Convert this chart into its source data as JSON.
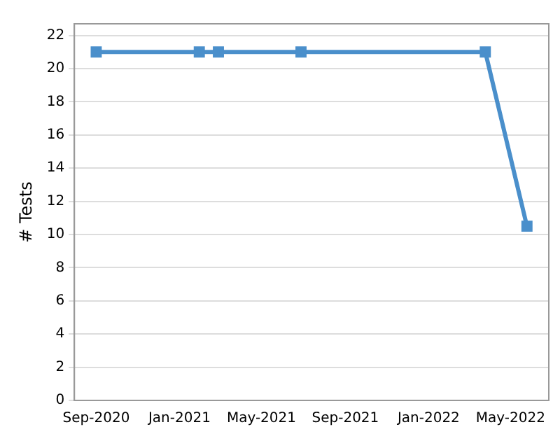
{
  "chart_data": {
    "type": "line",
    "ylabel": "# Tests",
    "x": [
      "2020-09-01",
      "2021-01-30",
      "2021-02-27",
      "2021-06-28",
      "2022-03-25",
      "2022-05-25"
    ],
    "series": [
      {
        "color": "#4a8fcb",
        "values": [
          21,
          21,
          21,
          21,
          21,
          10.5
        ]
      }
    ],
    "xlim": [
      "2020-07-31",
      "2022-06-26"
    ],
    "xticks": [
      {
        "value": "2020-09-01",
        "label": "Sep-2020"
      },
      {
        "value": "2021-01-01",
        "label": "Jan-2021"
      },
      {
        "value": "2021-05-01",
        "label": "May-2021"
      },
      {
        "value": "2021-09-01",
        "label": "Sep-2021"
      },
      {
        "value": "2022-01-01",
        "label": "Jan-2022"
      },
      {
        "value": "2022-05-01",
        "label": "May-2022"
      }
    ],
    "ylim": [
      0,
      22.7
    ],
    "yticks": [
      0,
      2,
      4,
      6,
      8,
      10,
      12,
      14,
      16,
      18,
      20,
      22
    ],
    "grid": "y",
    "marker": "square",
    "line_style": "solid",
    "legend": false
  }
}
